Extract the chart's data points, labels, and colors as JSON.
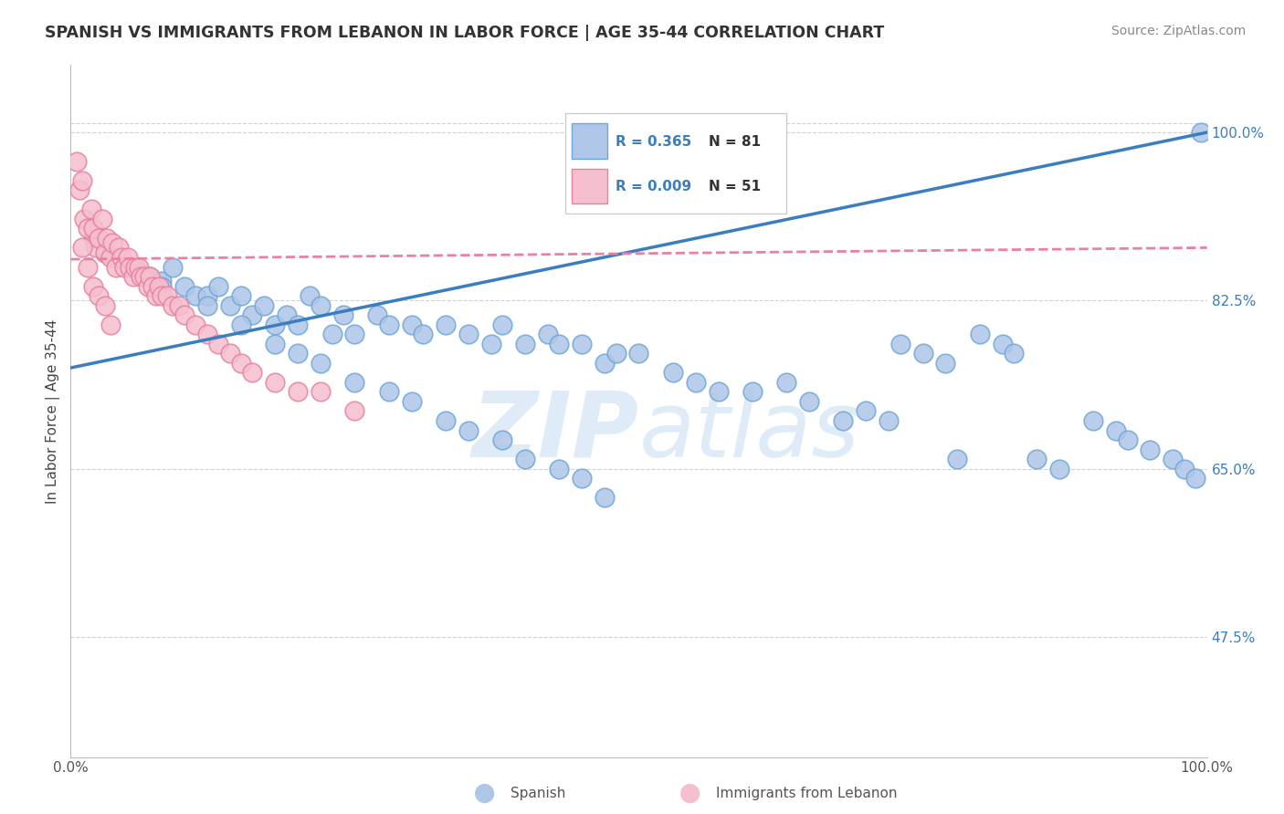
{
  "title": "SPANISH VS IMMIGRANTS FROM LEBANON IN LABOR FORCE | AGE 35-44 CORRELATION CHART",
  "source": "Source: ZipAtlas.com",
  "ylabel": "In Labor Force | Age 35-44",
  "watermark": "ZIPatlas",
  "xlim": [
    0.0,
    1.0
  ],
  "ylim": [
    0.35,
    1.07
  ],
  "yticks": [
    0.475,
    0.65,
    0.825,
    1.0
  ],
  "ytick_labels": [
    "47.5%",
    "65.0%",
    "82.5%",
    "100.0%"
  ],
  "xtick_labels": [
    "0.0%",
    "100.0%"
  ],
  "blue_R": 0.365,
  "blue_N": 81,
  "pink_R": 0.009,
  "pink_N": 51,
  "blue_color": "#aec6e8",
  "blue_edge": "#6fa8d6",
  "pink_color": "#f5bfcf",
  "pink_edge": "#e8829e",
  "blue_line_color": "#3a7ebf",
  "pink_line_color": "#e8829e",
  "grid_color": "#d0d0d0",
  "legend_box_blue": "#aec6e8",
  "legend_box_pink": "#f5bfcf",
  "blue_line_start_y": 0.755,
  "blue_line_end_y": 1.0,
  "pink_line_start_y": 0.868,
  "pink_line_end_y": 0.88,
  "blue_scatter_x": [
    0.02,
    0.03,
    0.04,
    0.05,
    0.06,
    0.07,
    0.08,
    0.09,
    0.1,
    0.11,
    0.12,
    0.13,
    0.14,
    0.15,
    0.16,
    0.17,
    0.18,
    0.19,
    0.2,
    0.21,
    0.22,
    0.23,
    0.24,
    0.25,
    0.27,
    0.28,
    0.3,
    0.31,
    0.33,
    0.35,
    0.37,
    0.38,
    0.4,
    0.42,
    0.43,
    0.45,
    0.47,
    0.48,
    0.5,
    0.53,
    0.55,
    0.57,
    0.6,
    0.63,
    0.65,
    0.68,
    0.7,
    0.72,
    0.73,
    0.75,
    0.77,
    0.78,
    0.8,
    0.82,
    0.83,
    0.85,
    0.87,
    0.9,
    0.92,
    0.93,
    0.95,
    0.97,
    0.98,
    0.99,
    0.995,
    0.08,
    0.12,
    0.15,
    0.18,
    0.2,
    0.22,
    0.25,
    0.28,
    0.3,
    0.33,
    0.35,
    0.38,
    0.4,
    0.43,
    0.45,
    0.47
  ],
  "blue_scatter_y": [
    0.89,
    0.875,
    0.87,
    0.86,
    0.855,
    0.85,
    0.845,
    0.86,
    0.84,
    0.83,
    0.83,
    0.84,
    0.82,
    0.83,
    0.81,
    0.82,
    0.8,
    0.81,
    0.8,
    0.83,
    0.82,
    0.79,
    0.81,
    0.79,
    0.81,
    0.8,
    0.8,
    0.79,
    0.8,
    0.79,
    0.78,
    0.8,
    0.78,
    0.79,
    0.78,
    0.78,
    0.76,
    0.77,
    0.77,
    0.75,
    0.74,
    0.73,
    0.73,
    0.74,
    0.72,
    0.7,
    0.71,
    0.7,
    0.78,
    0.77,
    0.76,
    0.66,
    0.79,
    0.78,
    0.77,
    0.66,
    0.65,
    0.7,
    0.69,
    0.68,
    0.67,
    0.66,
    0.65,
    0.64,
    1.0,
    0.84,
    0.82,
    0.8,
    0.78,
    0.77,
    0.76,
    0.74,
    0.73,
    0.72,
    0.7,
    0.69,
    0.68,
    0.66,
    0.65,
    0.64,
    0.62
  ],
  "pink_scatter_x": [
    0.005,
    0.008,
    0.01,
    0.012,
    0.015,
    0.018,
    0.02,
    0.022,
    0.025,
    0.028,
    0.03,
    0.032,
    0.035,
    0.037,
    0.04,
    0.042,
    0.045,
    0.047,
    0.05,
    0.052,
    0.055,
    0.057,
    0.06,
    0.062,
    0.065,
    0.068,
    0.07,
    0.072,
    0.075,
    0.078,
    0.08,
    0.085,
    0.09,
    0.095,
    0.1,
    0.11,
    0.12,
    0.13,
    0.14,
    0.15,
    0.16,
    0.18,
    0.2,
    0.22,
    0.25,
    0.01,
    0.015,
    0.02,
    0.025,
    0.03,
    0.035
  ],
  "pink_scatter_y": [
    0.97,
    0.94,
    0.95,
    0.91,
    0.9,
    0.92,
    0.9,
    0.88,
    0.89,
    0.91,
    0.875,
    0.89,
    0.87,
    0.885,
    0.86,
    0.88,
    0.87,
    0.86,
    0.87,
    0.86,
    0.85,
    0.86,
    0.86,
    0.85,
    0.85,
    0.84,
    0.85,
    0.84,
    0.83,
    0.84,
    0.83,
    0.83,
    0.82,
    0.82,
    0.81,
    0.8,
    0.79,
    0.78,
    0.77,
    0.76,
    0.75,
    0.74,
    0.73,
    0.73,
    0.71,
    0.88,
    0.86,
    0.84,
    0.83,
    0.82,
    0.8
  ]
}
